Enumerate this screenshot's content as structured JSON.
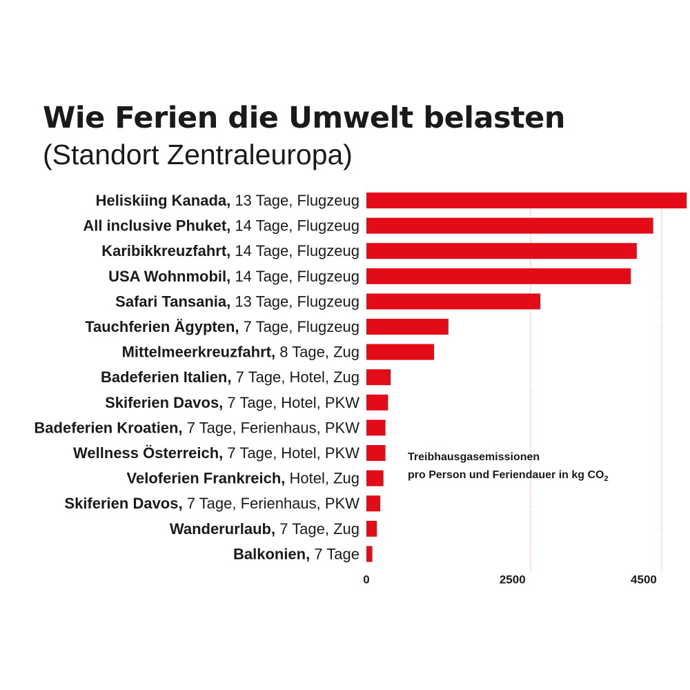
{
  "title": "Wie Ferien die Umwelt belasten",
  "subtitle": "(Standort Zentraleuropa)",
  "unit_note": {
    "line1": "Treibhausgasemissionen",
    "line2": "pro Person und Feriendauer in kg CO",
    "line2_sub": "2"
  },
  "colors": {
    "bar": "#e30b17",
    "grid": "#e07070",
    "text": "#1a1a1a"
  },
  "chart_data": {
    "type": "bar",
    "orientation": "horizontal",
    "xlim": [
      0,
      4900
    ],
    "xticks": [
      0,
      2500,
      4500
    ],
    "grid": "dotted vertical lines at ticks",
    "categories": [
      {
        "bold": "Heliskiing Kanada,",
        "detail": " 13 Tage, Flugzeug"
      },
      {
        "bold": "All inclusive Phuket,",
        "detail": " 14 Tage, Flugzeug"
      },
      {
        "bold": "Karibikkreuzfahrt,",
        "detail": " 14 Tage, Flugzeug"
      },
      {
        "bold": "USA Wohnmobil,",
        "detail": " 14 Tage, Flugzeug"
      },
      {
        "bold": "Safari Tansania,",
        "detail": " 13 Tage, Flugzeug"
      },
      {
        "bold": "Tauchferien Ägypten,",
        "detail": " 7 Tage, Flugzeug"
      },
      {
        "bold": "Mittelmeerkreuzfahrt,",
        "detail": " 8 Tage, Zug"
      },
      {
        "bold": "Badeferien Italien,",
        "detail": " 7 Tage, Hotel, Zug"
      },
      {
        "bold": "Skiferien Davos,",
        "detail": " 7 Tage, Hotel, PKW"
      },
      {
        "bold": "Badeferien Kroatien,",
        "detail": " 7 Tage, Ferienhaus, PKW"
      },
      {
        "bold": "Wellness Österreich,",
        "detail": " 7 Tage, Hotel, PKW"
      },
      {
        "bold": "Veloferien Frankreich,",
        "detail": " Hotel, Zug"
      },
      {
        "bold": "Skiferien Davos,",
        "detail": " 7 Tage, Ferienhaus, PKW"
      },
      {
        "bold": "Wanderurlaub,",
        "detail": " 7 Tage, Zug"
      },
      {
        "bold": "Balkonien,",
        "detail": " 7 Tage"
      }
    ],
    "values": [
      4880,
      4370,
      4120,
      4030,
      2650,
      1250,
      1030,
      370,
      330,
      290,
      290,
      260,
      210,
      160,
      90
    ]
  }
}
